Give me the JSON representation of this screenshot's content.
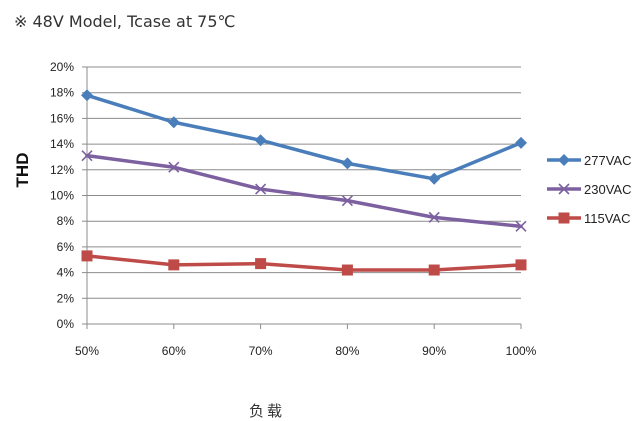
{
  "chart_data": {
    "type": "line",
    "title": "※ 48V Model, Tcase at 75℃",
    "xlabel": "负载",
    "ylabel": "THD",
    "categories": [
      "50%",
      "60%",
      "70%",
      "80%",
      "90%",
      "100%"
    ],
    "ylim": [
      0,
      20
    ],
    "y_ticks": [
      0,
      2,
      4,
      6,
      8,
      10,
      12,
      14,
      16,
      18,
      20
    ],
    "y_tick_suffix": "%",
    "grid": "horizontal",
    "legend_position": "right",
    "series": [
      {
        "name": "277VAC",
        "values": [
          17.8,
          15.7,
          14.3,
          12.5,
          11.3,
          14.1
        ],
        "color": "#4A7EBB",
        "marker": "diamond"
      },
      {
        "name": "230VAC",
        "values": [
          13.1,
          12.2,
          10.5,
          9.6,
          8.3,
          7.6
        ],
        "color": "#7D60A0",
        "marker": "x"
      },
      {
        "name": "115VAC",
        "values": [
          5.3,
          4.6,
          4.7,
          4.2,
          4.2,
          4.6
        ],
        "color": "#BE4B48",
        "marker": "square"
      }
    ]
  }
}
